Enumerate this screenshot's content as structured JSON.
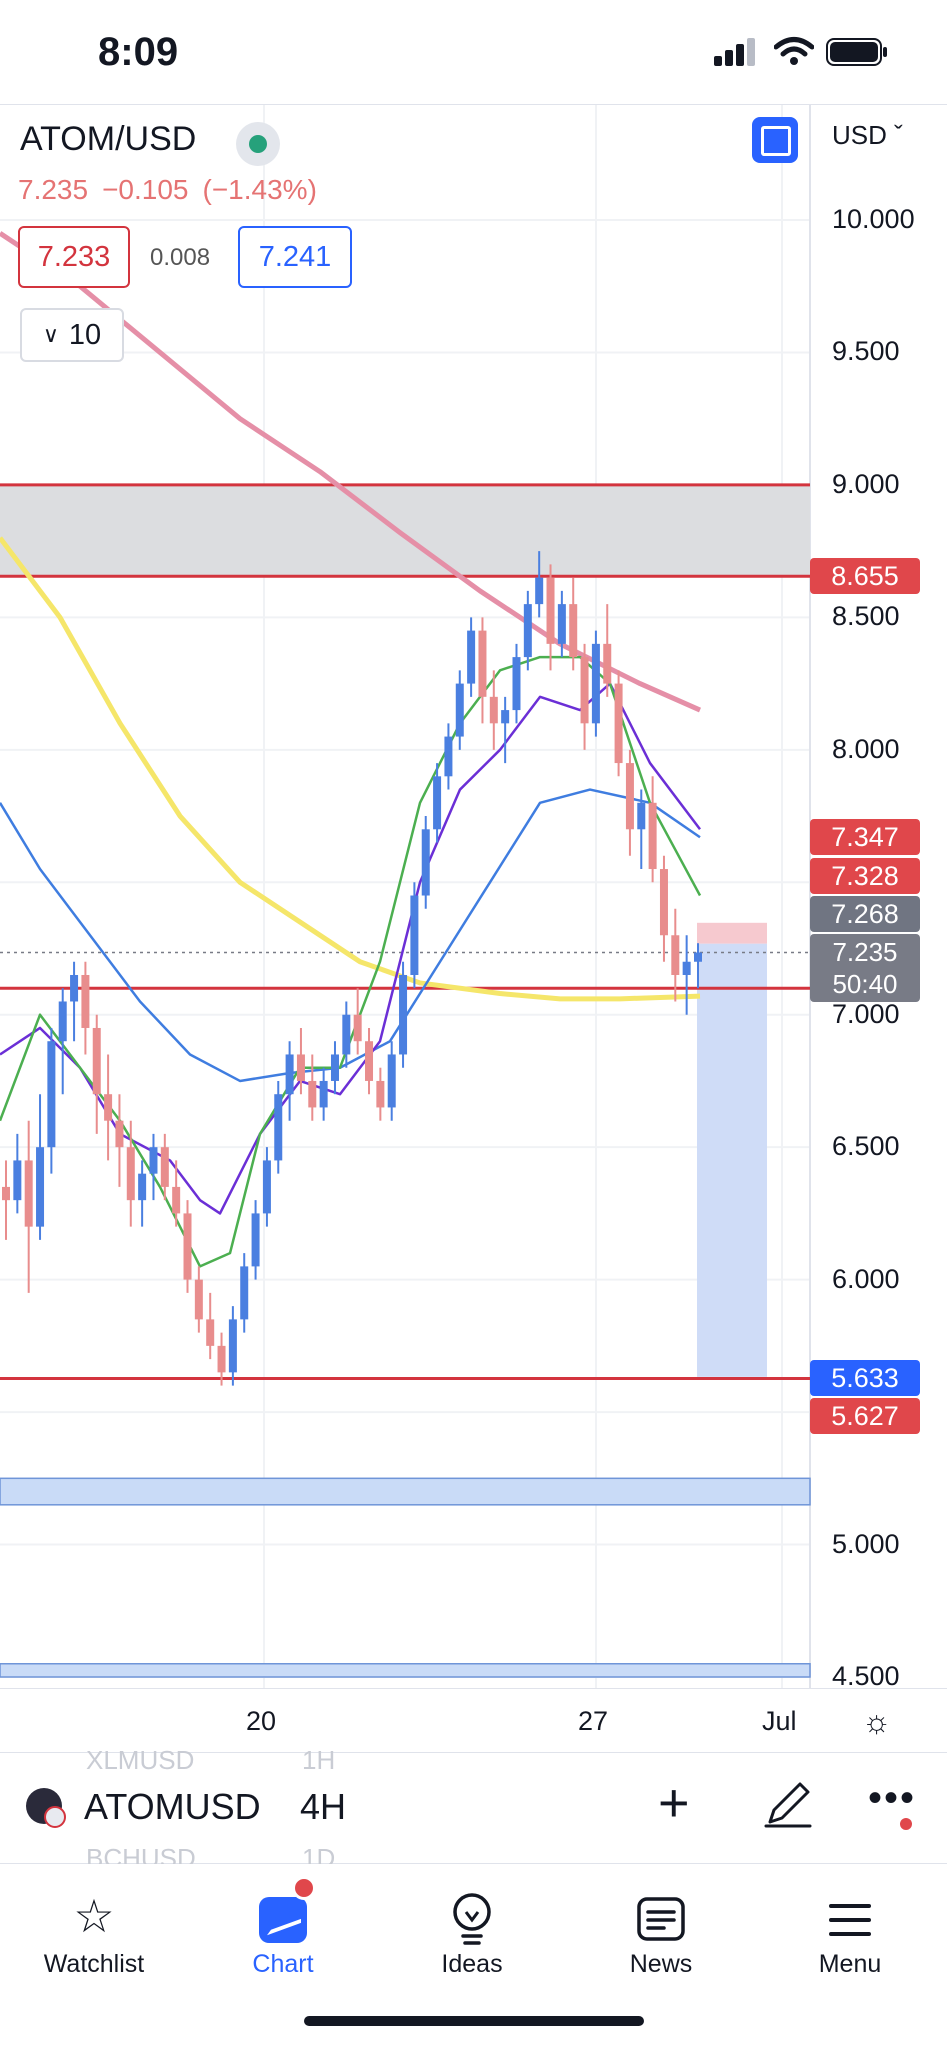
{
  "status_bar": {
    "time": "8:09"
  },
  "header": {
    "symbol": "ATOM/USD",
    "last": "7.235",
    "change": "−0.105",
    "change_pct": "(−1.43%)",
    "bid": "7.233",
    "spread": "0.008",
    "ask": "7.241",
    "indicators_collapsed_count": "10",
    "currency": "USD"
  },
  "price_axis": {
    "labels": [
      "10.000",
      "9.500",
      "9.000",
      "8.500",
      "8.000",
      "7.000",
      "6.500",
      "6.000",
      "5.000",
      "4.500"
    ],
    "tags": [
      {
        "value": "8.655",
        "color": "red"
      },
      {
        "value": "7.347",
        "color": "red"
      },
      {
        "value": "7.328",
        "color": "red"
      },
      {
        "value": "7.268",
        "color": "grey"
      },
      {
        "value": "5.633",
        "color": "blue"
      },
      {
        "value": "5.627",
        "color": "red"
      }
    ],
    "last_price": "7.235",
    "countdown": "50:40"
  },
  "time_axis": {
    "labels": [
      "20",
      "27",
      "Jul"
    ]
  },
  "chart_data": {
    "type": "candlestick",
    "ylim": [
      4.45,
      10.3
    ],
    "horizontal_levels": [
      9.0,
      8.655,
      7.1,
      5.627
    ],
    "zone_grey": [
      8.655,
      9.0
    ],
    "zone_blue_1": [
      5.15,
      5.25
    ],
    "zone_blue_2": [
      4.5,
      4.55
    ],
    "position": {
      "entry": 7.268,
      "stop": 7.347,
      "target": 5.633
    },
    "candles": [
      [
        6.35,
        6.45,
        6.15,
        6.3
      ],
      [
        6.3,
        6.55,
        6.25,
        6.45
      ],
      [
        6.45,
        6.6,
        5.95,
        6.2
      ],
      [
        6.2,
        6.7,
        6.15,
        6.5
      ],
      [
        6.5,
        6.95,
        6.4,
        6.9
      ],
      [
        6.9,
        7.1,
        6.7,
        7.05
      ],
      [
        7.05,
        7.2,
        6.9,
        7.15
      ],
      [
        7.15,
        7.2,
        6.85,
        6.95
      ],
      [
        6.95,
        7.0,
        6.55,
        6.7
      ],
      [
        6.7,
        6.85,
        6.45,
        6.6
      ],
      [
        6.6,
        6.7,
        6.35,
        6.5
      ],
      [
        6.5,
        6.6,
        6.2,
        6.3
      ],
      [
        6.3,
        6.45,
        6.2,
        6.4
      ],
      [
        6.4,
        6.55,
        6.3,
        6.5
      ],
      [
        6.5,
        6.55,
        6.3,
        6.35
      ],
      [
        6.35,
        6.45,
        6.2,
        6.25
      ],
      [
        6.25,
        6.3,
        5.95,
        6.0
      ],
      [
        6.0,
        6.05,
        5.8,
        5.85
      ],
      [
        5.85,
        5.95,
        5.7,
        5.75
      ],
      [
        5.75,
        5.8,
        5.6,
        5.65
      ],
      [
        5.65,
        5.9,
        5.6,
        5.85
      ],
      [
        5.85,
        6.1,
        5.8,
        6.05
      ],
      [
        6.05,
        6.3,
        6.0,
        6.25
      ],
      [
        6.25,
        6.5,
        6.2,
        6.45
      ],
      [
        6.45,
        6.75,
        6.4,
        6.7
      ],
      [
        6.7,
        6.9,
        6.6,
        6.85
      ],
      [
        6.85,
        6.95,
        6.7,
        6.75
      ],
      [
        6.75,
        6.85,
        6.6,
        6.65
      ],
      [
        6.65,
        6.8,
        6.6,
        6.75
      ],
      [
        6.75,
        6.9,
        6.7,
        6.85
      ],
      [
        6.85,
        7.05,
        6.8,
        7.0
      ],
      [
        7.0,
        7.1,
        6.85,
        6.9
      ],
      [
        6.9,
        6.95,
        6.7,
        6.75
      ],
      [
        6.75,
        6.8,
        6.6,
        6.65
      ],
      [
        6.65,
        6.9,
        6.6,
        6.85
      ],
      [
        6.85,
        7.2,
        6.8,
        7.15
      ],
      [
        7.15,
        7.5,
        7.1,
        7.45
      ],
      [
        7.45,
        7.75,
        7.4,
        7.7
      ],
      [
        7.7,
        7.95,
        7.65,
        7.9
      ],
      [
        7.9,
        8.1,
        7.85,
        8.05
      ],
      [
        8.05,
        8.3,
        8.0,
        8.25
      ],
      [
        8.25,
        8.5,
        8.2,
        8.45
      ],
      [
        8.45,
        8.5,
        8.1,
        8.2
      ],
      [
        8.2,
        8.3,
        8.0,
        8.1
      ],
      [
        8.1,
        8.2,
        7.95,
        8.15
      ],
      [
        8.15,
        8.4,
        8.1,
        8.35
      ],
      [
        8.35,
        8.6,
        8.3,
        8.55
      ],
      [
        8.55,
        8.75,
        8.5,
        8.65
      ],
      [
        8.65,
        8.7,
        8.3,
        8.4
      ],
      [
        8.4,
        8.6,
        8.35,
        8.55
      ],
      [
        8.55,
        8.65,
        8.3,
        8.35
      ],
      [
        8.35,
        8.4,
        8.0,
        8.1
      ],
      [
        8.1,
        8.45,
        8.05,
        8.4
      ],
      [
        8.4,
        8.55,
        8.2,
        8.25
      ],
      [
        8.25,
        8.3,
        7.9,
        7.95
      ],
      [
        7.95,
        8.0,
        7.6,
        7.7
      ],
      [
        7.7,
        7.85,
        7.55,
        7.8
      ],
      [
        7.8,
        7.9,
        7.5,
        7.55
      ],
      [
        7.55,
        7.6,
        7.2,
        7.3
      ],
      [
        7.3,
        7.4,
        7.05,
        7.15
      ],
      [
        7.15,
        7.3,
        7.0,
        7.2
      ],
      [
        7.2,
        7.27,
        7.1,
        7.235
      ]
    ]
  },
  "toolbar": {
    "symbol": "ATOMUSD",
    "interval": "4H",
    "ghost_above": [
      "XLMUSD",
      "1H"
    ],
    "ghost_below": [
      "BCHUSD",
      "1D"
    ]
  },
  "tabs": [
    {
      "label": "Watchlist"
    },
    {
      "label": "Chart"
    },
    {
      "label": "Ideas"
    },
    {
      "label": "News"
    },
    {
      "label": "Menu"
    }
  ]
}
